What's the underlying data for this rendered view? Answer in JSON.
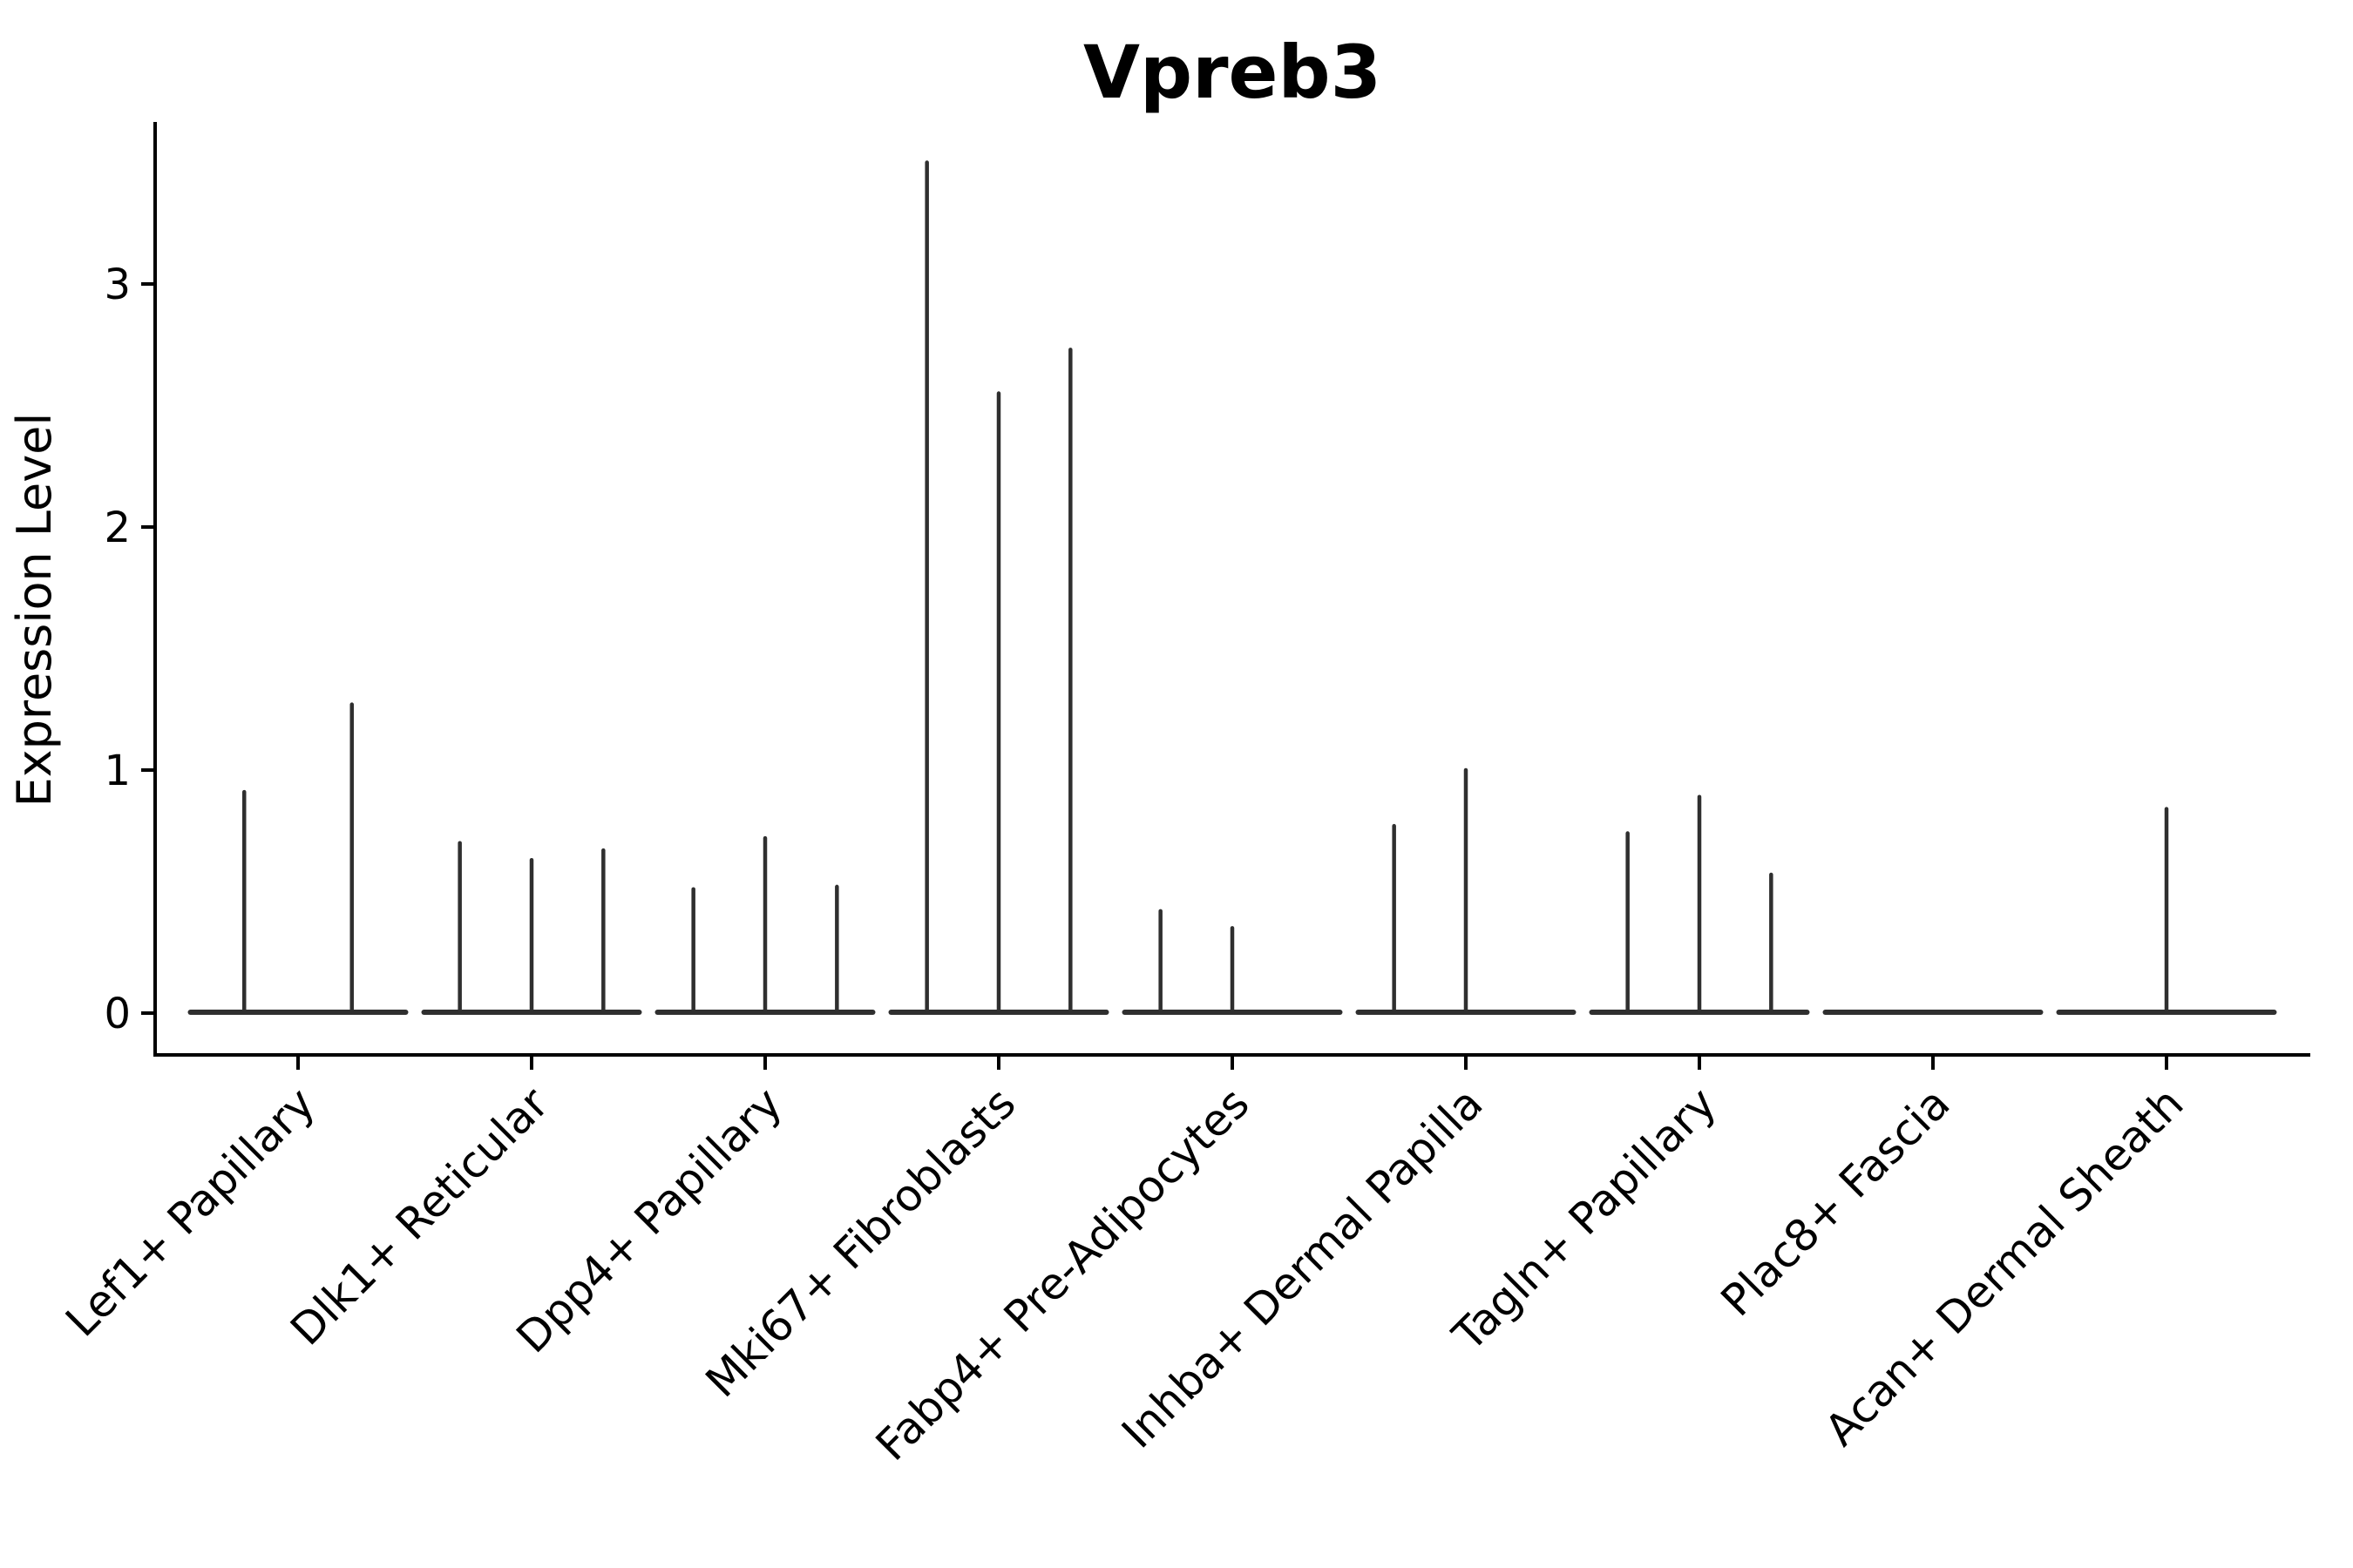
{
  "chart_data": {
    "type": "violin",
    "title": "Vpreb3",
    "xlabel": "",
    "ylabel": "Expression Level",
    "yticks": [
      0,
      1,
      2,
      3
    ],
    "ylim": [
      -0.17,
      3.67
    ],
    "grid": false,
    "legend_position": "none",
    "xticklabel_rotation": 45,
    "categories": [
      "Lef1+ Papillary",
      "Dlk1+ Reticular",
      "Dpp4+ Papillary",
      "Mki67+ Fibroblasts",
      "Fabp4+ Pre-Adipocytes",
      "Inhba+ Dermal Papilla",
      "Tagln+ Papillary",
      "Plac8+ Fascia",
      "Acan+ Dermal Sheath"
    ],
    "groups": [
      {
        "label": "Lef1+ Papillary",
        "spike_peaks": [
          0.91,
          1.27
        ]
      },
      {
        "label": "Dlk1+ Reticular",
        "spike_peaks": [
          0.7,
          0.63,
          0.67
        ]
      },
      {
        "label": "Dpp4+ Papillary",
        "spike_peaks": [
          0.51,
          0.72,
          0.52
        ]
      },
      {
        "label": "Mki67+ Fibroblasts",
        "spike_peaks": [
          3.5,
          2.55,
          2.73
        ]
      },
      {
        "label": "Fabp4+ Pre-Adipocytes",
        "spike_peaks": [
          0.42,
          0.35,
          0
        ]
      },
      {
        "label": "Inhba+ Dermal Papilla",
        "spike_peaks": [
          0.77,
          1.0,
          0
        ]
      },
      {
        "label": "Tagln+ Papillary",
        "spike_peaks": [
          0.74,
          0.89,
          0.57
        ]
      },
      {
        "label": "Plac8+ Fascia",
        "spike_peaks": [
          0
        ]
      },
      {
        "label": "Acan+ Dermal Sheath",
        "spike_peaks": [
          0.84
        ]
      }
    ],
    "colors": {
      "violin": "#2f2f2f",
      "axis": "#000000",
      "text": "#000000",
      "background": "#ffffff"
    }
  }
}
